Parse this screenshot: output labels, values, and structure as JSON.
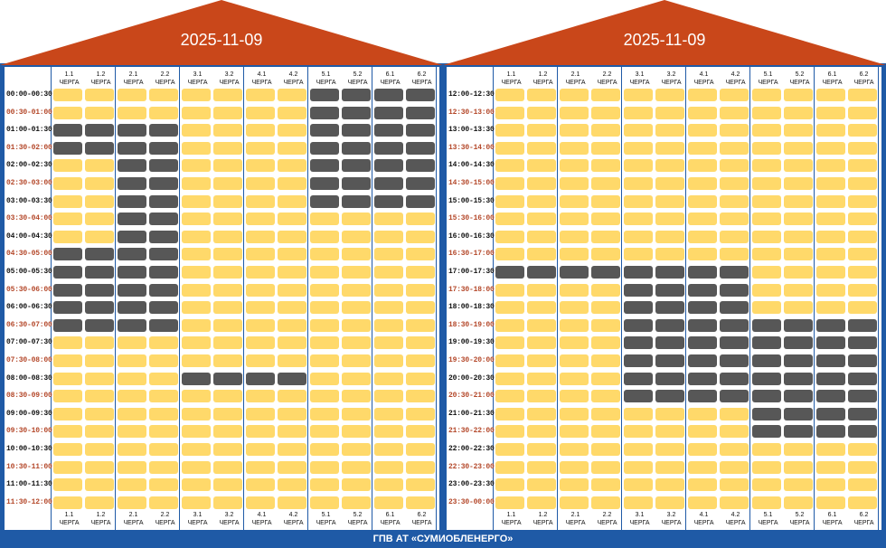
{
  "colors": {
    "frame": "#1f5aa6",
    "roof": "#c9471a",
    "power_on": "#ffd96a",
    "power_off": "#575757",
    "half_hour_label": "#b4482a"
  },
  "queue_word": "ЧЕРГА",
  "queues": [
    "1.1",
    "1.2",
    "2.1",
    "2.2",
    "3.1",
    "3.2",
    "4.1",
    "4.2",
    "5.1",
    "5.2",
    "6.1",
    "6.2"
  ],
  "footer": "ГПВ АТ «СУМИОБЛЕНЕРГО»",
  "panels": [
    {
      "date": "2025-11-09",
      "slots": [
        {
          "time": "00:00-00:30",
          "off": [
            9,
            10,
            11,
            12
          ]
        },
        {
          "time": "00:30-01:00",
          "off": [
            9,
            10,
            11,
            12
          ]
        },
        {
          "time": "01:00-01:30",
          "off": [
            1,
            2,
            3,
            4,
            9,
            10,
            11,
            12
          ]
        },
        {
          "time": "01:30-02:00",
          "off": [
            1,
            2,
            3,
            4,
            9,
            10,
            11,
            12
          ]
        },
        {
          "time": "02:00-02:30",
          "off": [
            3,
            4,
            9,
            10,
            11,
            12
          ]
        },
        {
          "time": "02:30-03:00",
          "off": [
            3,
            4,
            9,
            10,
            11,
            12
          ]
        },
        {
          "time": "03:00-03:30",
          "off": [
            3,
            4,
            9,
            10,
            11,
            12
          ]
        },
        {
          "time": "03:30-04:00",
          "off": [
            3,
            4
          ]
        },
        {
          "time": "04:00-04:30",
          "off": [
            3,
            4
          ]
        },
        {
          "time": "04:30-05:00",
          "off": [
            1,
            2,
            3,
            4
          ]
        },
        {
          "time": "05:00-05:30",
          "off": [
            1,
            2,
            3,
            4
          ]
        },
        {
          "time": "05:30-06:00",
          "off": [
            1,
            2,
            3,
            4
          ]
        },
        {
          "time": "06:00-06:30",
          "off": [
            1,
            2,
            3,
            4
          ]
        },
        {
          "time": "06:30-07:00",
          "off": [
            1,
            2,
            3,
            4
          ]
        },
        {
          "time": "07:00-07:30",
          "off": []
        },
        {
          "time": "07:30-08:00",
          "off": []
        },
        {
          "time": "08:00-08:30",
          "off": [
            5,
            6,
            7,
            8
          ]
        },
        {
          "time": "08:30-09:00",
          "off": []
        },
        {
          "time": "09:00-09:30",
          "off": []
        },
        {
          "time": "09:30-10:00",
          "off": []
        },
        {
          "time": "10:00-10:30",
          "off": []
        },
        {
          "time": "10:30-11:00",
          "off": []
        },
        {
          "time": "11:00-11:30",
          "off": []
        },
        {
          "time": "11:30-12:00",
          "off": []
        }
      ]
    },
    {
      "date": "2025-11-09",
      "slots": [
        {
          "time": "12:00-12:30",
          "off": []
        },
        {
          "time": "12:30-13:00",
          "off": []
        },
        {
          "time": "13:00-13:30",
          "off": []
        },
        {
          "time": "13:30-14:00",
          "off": []
        },
        {
          "time": "14:00-14:30",
          "off": []
        },
        {
          "time": "14:30-15:00",
          "off": []
        },
        {
          "time": "15:00-15:30",
          "off": []
        },
        {
          "time": "15:30-16:00",
          "off": []
        },
        {
          "time": "16:00-16:30",
          "off": []
        },
        {
          "time": "16:30-17:00",
          "off": []
        },
        {
          "time": "17:00-17:30",
          "off": [
            1,
            2,
            3,
            4,
            5,
            6,
            7,
            8
          ]
        },
        {
          "time": "17:30-18:00",
          "off": [
            5,
            6,
            7,
            8
          ]
        },
        {
          "time": "18:00-18:30",
          "off": [
            5,
            6,
            7,
            8
          ]
        },
        {
          "time": "18:30-19:00",
          "off": [
            5,
            6,
            7,
            8,
            9,
            10,
            11,
            12
          ]
        },
        {
          "time": "19:00-19:30",
          "off": [
            5,
            6,
            7,
            8,
            9,
            10,
            11,
            12
          ]
        },
        {
          "time": "19:30-20:00",
          "off": [
            5,
            6,
            7,
            8,
            9,
            10,
            11,
            12
          ]
        },
        {
          "time": "20:00-20:30",
          "off": [
            5,
            6,
            7,
            8,
            9,
            10,
            11,
            12
          ]
        },
        {
          "time": "20:30-21:00",
          "off": [
            5,
            6,
            7,
            8,
            9,
            10,
            11,
            12
          ]
        },
        {
          "time": "21:00-21:30",
          "off": [
            9,
            10,
            11,
            12
          ]
        },
        {
          "time": "21:30-22:00",
          "off": [
            9,
            10,
            11,
            12
          ]
        },
        {
          "time": "22:00-22:30",
          "off": []
        },
        {
          "time": "22:30-23:00",
          "off": []
        },
        {
          "time": "23:00-23:30",
          "off": []
        },
        {
          "time": "23:30-00:00",
          "off": []
        }
      ]
    }
  ]
}
